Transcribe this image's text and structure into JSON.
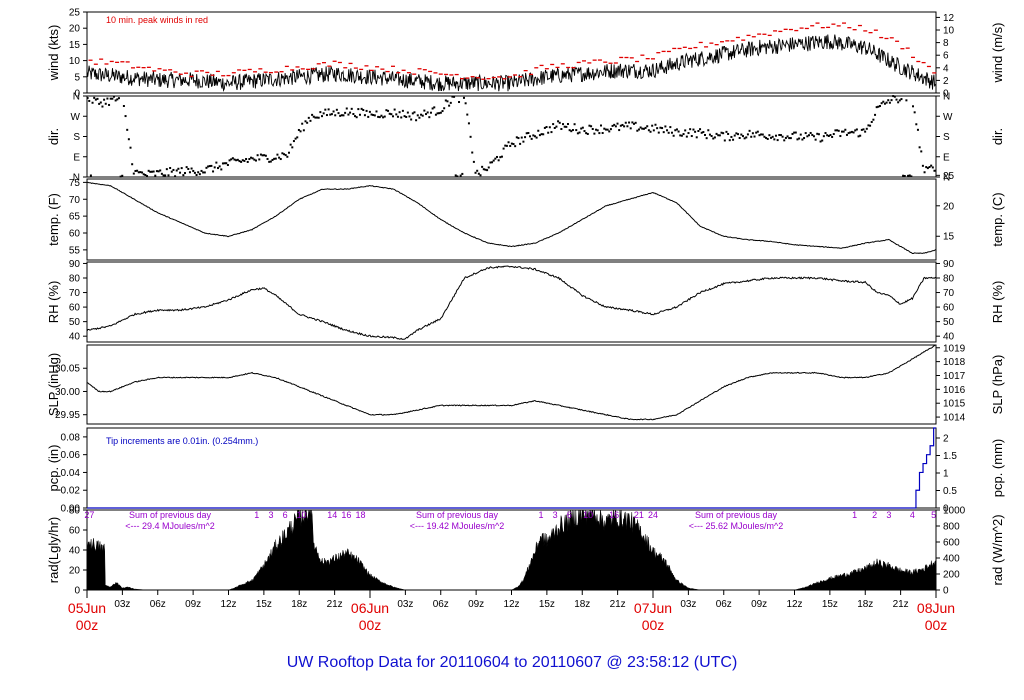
{
  "title": "UW Rooftop Data for 20110604  to  20110607 @ 23:58:12  (UTC)",
  "colors": {
    "text": "#000000",
    "accent_red": "#e00000",
    "blue": "#0000c0",
    "purple": "#9900cc",
    "title_blue": "#1010d0"
  },
  "x_axis": {
    "hour_ticks": [
      "03z",
      "06z",
      "09z",
      "12z",
      "15z",
      "18z",
      "21z",
      "00z",
      "03z",
      "06z",
      "09z",
      "12z",
      "15z",
      "18z",
      "21z",
      "00z",
      "03z",
      "06z",
      "09z",
      "12z",
      "15z",
      "18z",
      "21z"
    ],
    "day_labels": [
      {
        "hours": 0,
        "date": "05Jun",
        "time": "00z"
      },
      {
        "hours": 24,
        "date": "06Jun",
        "time": "00z"
      },
      {
        "hours": 48,
        "date": "07Jun",
        "time": "00z"
      },
      {
        "hours": 72,
        "date": "08Jun",
        "time": "00z"
      }
    ],
    "range_hours": [
      0,
      72
    ]
  },
  "chart_data": [
    {
      "type": "line",
      "ylabel_left": "wind (kts)",
      "ylabel_right": "wind (m/s)",
      "ylim": [
        0,
        25
      ],
      "ticks_left": [
        "0",
        "5",
        "10",
        "15",
        "20",
        "25"
      ],
      "ylim_right": [
        0,
        12.86
      ],
      "ticks_right": [
        "0",
        "2",
        "4",
        "6",
        "8",
        "10",
        "12"
      ],
      "annotation": "10 min. peak winds in red",
      "x_hours": [
        0,
        3,
        6,
        9,
        12,
        15,
        18,
        21,
        24,
        27,
        30,
        33,
        36,
        39,
        42,
        45,
        48,
        51,
        54,
        57,
        60,
        63,
        66,
        69,
        72
      ],
      "series": [
        {
          "values": [
            6,
            5,
            4,
            4,
            3,
            4,
            5,
            6,
            5,
            4,
            3,
            3,
            3,
            5,
            6,
            7,
            7,
            10,
            12,
            14,
            15,
            16,
            14,
            8,
            3
          ]
        },
        {
          "values": [
            10,
            9,
            7,
            6,
            6,
            7,
            8,
            9,
            8,
            7,
            6,
            5,
            5,
            8,
            9,
            10,
            11,
            14,
            16,
            18,
            20,
            21,
            20,
            15,
            6
          ]
        }
      ]
    },
    {
      "type": "scatter",
      "ylabel_left": "dir.",
      "ylabel_right": "dir.",
      "ylim": [
        0,
        360
      ],
      "ticks_left": [
        "N",
        "E",
        "S",
        "W",
        "N"
      ],
      "ticks_right": [
        "N",
        "E",
        "S",
        "W",
        "N"
      ],
      "x_hours": [
        0,
        1,
        2,
        3,
        4,
        5,
        6,
        8,
        10,
        12,
        14,
        16,
        17,
        18,
        19,
        20,
        22,
        24,
        26,
        28,
        30,
        31,
        32,
        33,
        34,
        36,
        38,
        40,
        42,
        44,
        46,
        48,
        50,
        52,
        54,
        56,
        58,
        60,
        62,
        64,
        66,
        67,
        68,
        69,
        70,
        71,
        72
      ],
      "values": [
        355,
        330,
        340,
        350,
        20,
        10,
        15,
        25,
        30,
        60,
        80,
        90,
        100,
        200,
        270,
        280,
        290,
        280,
        285,
        270,
        300,
        350,
        355,
        10,
        40,
        150,
        190,
        230,
        210,
        215,
        225,
        215,
        200,
        195,
        180,
        190,
        185,
        180,
        175,
        195,
        200,
        300,
        340,
        350,
        350,
        20,
        50
      ]
    },
    {
      "type": "line",
      "ylabel_left": "temp. (F)",
      "ylabel_right": "temp. (C)",
      "ylim": [
        52,
        76
      ],
      "ticks_left": [
        "55",
        "60",
        "65",
        "70",
        "75"
      ],
      "ylim_right": [
        11.1,
        24.4
      ],
      "ticks_right": [
        "15",
        "20",
        "25"
      ],
      "x_hours": [
        0,
        2,
        4,
        6,
        8,
        10,
        12,
        14,
        16,
        18,
        20,
        22,
        24,
        26,
        28,
        30,
        32,
        34,
        36,
        38,
        40,
        42,
        44,
        46,
        48,
        50,
        52,
        54,
        56,
        58,
        60,
        62,
        64,
        66,
        68,
        69,
        70,
        71,
        72
      ],
      "values": [
        75,
        74,
        70,
        66,
        63,
        60,
        59,
        61,
        65,
        70,
        73,
        73,
        74,
        73,
        69,
        64,
        60,
        57,
        56,
        57,
        60,
        64,
        68,
        70,
        72,
        69,
        62,
        59,
        58,
        57.5,
        56.5,
        56,
        55.5,
        57,
        58,
        56,
        54,
        54,
        55
      ]
    },
    {
      "type": "line",
      "ylabel_left": "RH (%)",
      "ylabel_right": "RH (%)",
      "ylim": [
        36,
        91
      ],
      "ticks_left": [
        "40",
        "50",
        "60",
        "70",
        "80",
        "90"
      ],
      "ticks_right": [
        "40",
        "50",
        "60",
        "70",
        "80",
        "90"
      ],
      "x_hours": [
        0,
        2,
        4,
        6,
        8,
        10,
        12,
        14,
        15,
        16,
        18,
        20,
        22,
        24,
        26,
        27,
        28,
        30,
        32,
        34,
        36,
        38,
        40,
        42,
        44,
        46,
        48,
        50,
        52,
        54,
        56,
        58,
        60,
        62,
        64,
        66,
        67,
        68,
        69,
        70,
        71,
        72
      ],
      "values": [
        44,
        47,
        55,
        58,
        58,
        60,
        65,
        72,
        73,
        68,
        55,
        50,
        44,
        40,
        39,
        38,
        44,
        52,
        80,
        87,
        88,
        86,
        80,
        68,
        60,
        58,
        55,
        60,
        70,
        76,
        78,
        80,
        80,
        80,
        78,
        77,
        70,
        68,
        62,
        66,
        80,
        80
      ]
    },
    {
      "type": "line",
      "ylabel_left": "SLP (inHg)",
      "ylabel_right": "SLP (hPa)",
      "ylim": [
        29.93,
        30.1
      ],
      "ticks_left": [
        "29.95",
        "30.00",
        "30.05"
      ],
      "ylim_right": [
        1013.5,
        1019.2
      ],
      "ticks_right": [
        "1014",
        "1015",
        "1016",
        "1017",
        "1018",
        "1019"
      ],
      "x_hours": [
        0,
        1,
        2,
        4,
        6,
        8,
        10,
        12,
        14,
        16,
        18,
        20,
        22,
        24,
        26,
        28,
        30,
        32,
        34,
        36,
        38,
        40,
        42,
        44,
        46,
        48,
        50,
        52,
        54,
        56,
        58,
        60,
        62,
        64,
        66,
        68,
        70,
        72
      ],
      "values": [
        30.02,
        30.0,
        30.0,
        30.02,
        30.03,
        30.03,
        30.03,
        30.03,
        30.04,
        30.03,
        30.01,
        29.99,
        29.97,
        29.95,
        29.95,
        29.96,
        29.97,
        29.97,
        29.97,
        29.97,
        29.98,
        29.97,
        29.96,
        29.95,
        29.94,
        29.94,
        29.95,
        29.98,
        30.01,
        30.03,
        30.04,
        30.04,
        30.04,
        30.03,
        30.03,
        30.04,
        30.07,
        30.1
      ]
    },
    {
      "type": "area",
      "ylabel_left": "pcp. (in)",
      "ylabel_right": "pcp. (mm)",
      "ylim": [
        0,
        0.09
      ],
      "ticks_left": [
        "0.00",
        "0.02",
        "0.04",
        "0.06",
        "0.08"
      ],
      "ylim_right": [
        0,
        2.286
      ],
      "ticks_right": [
        "0",
        "0.5",
        "1",
        "1.5",
        "2"
      ],
      "annotation": "Tip increments are 0.01in. (0.254mm.)",
      "x_hours": [
        0,
        70,
        70.3,
        70.6,
        70.9,
        71.2,
        71.5,
        71.8,
        72
      ],
      "values": [
        0,
        0,
        0.02,
        0.04,
        0.05,
        0.06,
        0.07,
        0.09,
        0.09
      ]
    },
    {
      "type": "area",
      "ylabel_left": "rad(Lgly/hr)",
      "ylabel_right": "rad (W/m^2)",
      "ylim": [
        0,
        80
      ],
      "ticks_left": [
        "0",
        "20",
        "40",
        "60",
        "80"
      ],
      "ylim_right": [
        0,
        1000
      ],
      "ticks_right": [
        "0",
        "200",
        "400",
        "600",
        "800",
        "1000"
      ],
      "day_sums": [
        {
          "text": "Sum of previous day",
          "value": "<--- 29.4 MJoules/m^2"
        },
        {
          "text": "Sum of previous day",
          "value": "<--- 19.42 MJoules/m^2"
        },
        {
          "text": "Sum of previous day",
          "value": "<--- 25.62 MJoules/m^2"
        }
      ],
      "tip_labels": [
        {
          "text": "27",
          "hours": 0.2
        },
        {
          "text": "1",
          "hours": 14.4
        },
        {
          "text": "3",
          "hours": 15.6
        },
        {
          "text": "6",
          "hours": 16.8
        },
        {
          "text": "10",
          "hours": 18.2
        },
        {
          "text": "14",
          "hours": 20.8
        },
        {
          "text": "16",
          "hours": 22.0
        },
        {
          "text": "18",
          "hours": 23.2
        },
        {
          "text": "1",
          "hours": 38.5
        },
        {
          "text": "3",
          "hours": 39.7
        },
        {
          "text": "6",
          "hours": 40.9
        },
        {
          "text": "10",
          "hours": 42.5
        },
        {
          "text": "16",
          "hours": 44.7
        },
        {
          "text": "21",
          "hours": 46.8
        },
        {
          "text": "24",
          "hours": 48.0
        },
        {
          "text": "1",
          "hours": 65.1
        },
        {
          "text": "2",
          "hours": 66.8
        },
        {
          "text": "3",
          "hours": 68.0
        },
        {
          "text": "4",
          "hours": 70.0
        },
        {
          "text": "5",
          "hours": 71.8
        }
      ],
      "x_hours": [
        0,
        1.5,
        1.55,
        2,
        2.5,
        3,
        3.5,
        4,
        5,
        12,
        12.5,
        13,
        14,
        15,
        16,
        17,
        18,
        19,
        19.2,
        19.5,
        20,
        21,
        22,
        23,
        24,
        25,
        26,
        27,
        36,
        36.5,
        37,
        37.5,
        38,
        38.5,
        39,
        40,
        41,
        42,
        43,
        44,
        45,
        46,
        47,
        48,
        49,
        50,
        51,
        51.5,
        52,
        60,
        61,
        62,
        63,
        64,
        65,
        66,
        67,
        68,
        69,
        70,
        71,
        72
      ],
      "values": [
        50,
        42,
        5,
        3,
        8,
        2,
        3,
        1,
        0,
        0,
        2,
        5,
        10,
        25,
        45,
        60,
        75,
        85,
        50,
        40,
        28,
        32,
        38,
        30,
        15,
        8,
        3,
        0,
        0,
        3,
        10,
        25,
        40,
        55,
        50,
        65,
        72,
        78,
        80,
        70,
        75,
        72,
        60,
        40,
        30,
        10,
        2,
        1,
        0,
        0,
        3,
        8,
        12,
        15,
        18,
        22,
        28,
        25,
        20,
        18,
        22,
        30
      ]
    }
  ]
}
